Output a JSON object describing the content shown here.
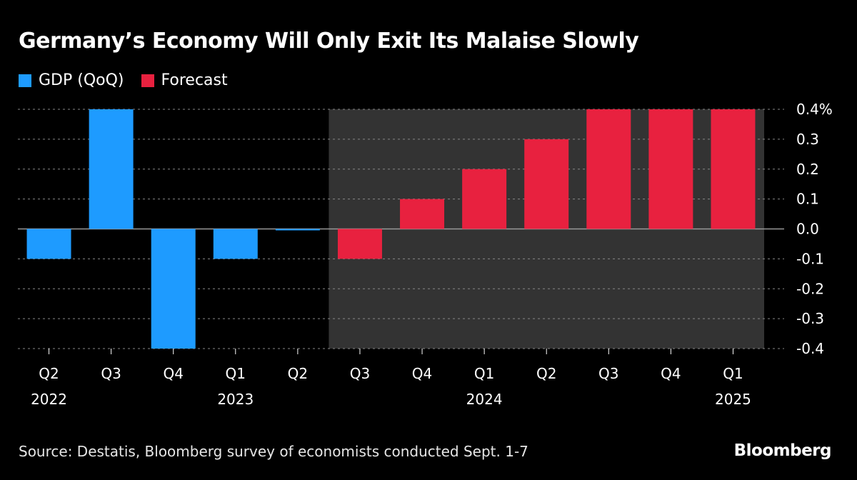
{
  "chart_data": {
    "type": "bar",
    "title": "Germany’s Economy Will Only Exit Its Malaise Slowly",
    "categories": [
      "Q2",
      "Q3",
      "Q4",
      "Q1",
      "Q2",
      "Q3",
      "Q4",
      "Q1",
      "Q2",
      "Q3",
      "Q4",
      "Q1"
    ],
    "year_labels": [
      "2022",
      "",
      "",
      "2023",
      "",
      "",
      "",
      "2024",
      "",
      "",
      "",
      "2025"
    ],
    "series": [
      {
        "name": "GDP (QoQ)",
        "color": "#1e9bff",
        "values": [
          -0.1,
          0.4,
          -0.4,
          -0.1,
          0.0,
          null,
          null,
          null,
          null,
          null,
          null,
          null
        ]
      },
      {
        "name": "Forecast",
        "color": "#e8213f",
        "values": [
          null,
          null,
          null,
          null,
          null,
          -0.1,
          0.1,
          0.2,
          0.3,
          0.4,
          0.4,
          0.4
        ]
      }
    ],
    "forecast_shading_start_category": 5,
    "shading_color": "#333333",
    "ylim": [
      -0.4,
      0.4
    ],
    "yticks": [
      "0.4%",
      "0.3",
      "0.2",
      "0.1",
      "0.0",
      "-0.1",
      "-0.2",
      "-0.3",
      "-0.4"
    ],
    "ytick_values": [
      0.4,
      0.3,
      0.2,
      0.1,
      0.0,
      -0.1,
      -0.2,
      -0.3,
      -0.4
    ],
    "grid": "dotted horizontal",
    "legend": "top-left",
    "xlabel": "",
    "ylabel": ""
  },
  "source": "Source: Destatis, Bloomberg survey of economists conducted Sept. 1-7",
  "logo": "Bloomberg"
}
